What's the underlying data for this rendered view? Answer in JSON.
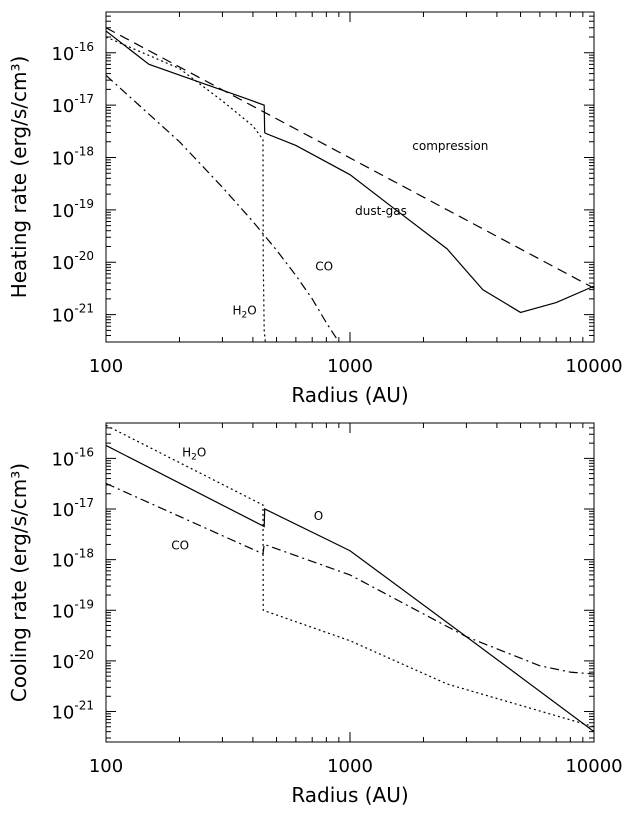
{
  "chart_data": [
    {
      "type": "line",
      "xlabel": "Radius (AU)",
      "ylabel": "Heating rate (erg/s/cm³)",
      "xscale": "log",
      "yscale": "log",
      "xlim": [
        100,
        10000
      ],
      "ylim": [
        3e-22,
        6e-16
      ],
      "x_ticks": [
        {
          "value": 100,
          "label": "100"
        },
        {
          "value": 1000,
          "label": "1000"
        },
        {
          "value": 10000,
          "label": "10000"
        }
      ],
      "y_ticks": [
        {
          "value": 1e-16,
          "label": "10",
          "exp": "-16"
        },
        {
          "value": 1e-17,
          "label": "10",
          "exp": "-17"
        },
        {
          "value": 1e-18,
          "label": "10",
          "exp": "-18"
        },
        {
          "value": 1e-19,
          "label": "10",
          "exp": "-19"
        },
        {
          "value": 1e-20,
          "label": "10",
          "exp": "-20"
        },
        {
          "value": 1e-21,
          "label": "10",
          "exp": "-21"
        }
      ],
      "grid": false,
      "series": [
        {
          "name": "compression",
          "style": "dashed",
          "points": [
            [
              100,
              3e-16
            ],
            [
              10000,
              3.2e-21
            ]
          ]
        },
        {
          "name": "dust-gas",
          "style": "solid",
          "points": [
            [
              100,
              2.6e-16
            ],
            [
              150,
              6e-17
            ],
            [
              250,
              2.6e-17
            ],
            [
              350,
              1.5e-17
            ],
            [
              445,
              1e-17
            ],
            [
              447,
              3e-18
            ],
            [
              450,
              2.9e-18
            ],
            [
              600,
              1.7e-18
            ],
            [
              1000,
              4.7e-19
            ],
            [
              1500,
              1.1e-19
            ],
            [
              2500,
              1.8e-20
            ],
            [
              3500,
              3e-21
            ],
            [
              5000,
              1.1e-21
            ],
            [
              7000,
              1.7e-21
            ],
            [
              10000,
              3.5e-21
            ]
          ]
        },
        {
          "name": "H₂O",
          "style": "dotted",
          "points": [
            [
              100,
              2e-16
            ],
            [
              200,
              5e-17
            ],
            [
              300,
              1.2e-17
            ],
            [
              400,
              4e-18
            ],
            [
              440,
              2.2e-18
            ],
            [
              441,
              1e-20
            ],
            [
              445,
              5e-22
            ],
            [
              450,
              3e-22
            ]
          ]
        },
        {
          "name": "CO",
          "style": "dashdot",
          "points": [
            [
              100,
              3.7e-17
            ],
            [
              200,
              2e-18
            ],
            [
              300,
              2.7e-19
            ],
            [
              400,
              6e-20
            ],
            [
              500,
              1.7e-20
            ],
            [
              600,
              5.6e-21
            ],
            [
              700,
              2e-21
            ],
            [
              800,
              7e-22
            ],
            [
              900,
              3e-22
            ]
          ]
        }
      ],
      "annotations": [
        {
          "text": "compression",
          "x": 1800,
          "y": 1.4e-18
        },
        {
          "text": "dust-gas",
          "x": 1050,
          "y": 8e-20
        },
        {
          "text": "CO",
          "x": 720,
          "y": 7e-21
        },
        {
          "text": "H",
          "sub": "2",
          "tail": "O",
          "x": 330,
          "y": 1e-21
        }
      ]
    },
    {
      "type": "line",
      "xlabel": "Radius (AU)",
      "ylabel": "Cooling rate (erg/s/cm³)",
      "xscale": "log",
      "yscale": "log",
      "xlim": [
        100,
        10000
      ],
      "ylim": [
        2.5e-22,
        5e-16
      ],
      "x_ticks": [
        {
          "value": 100,
          "label": "100"
        },
        {
          "value": 1000,
          "label": "1000"
        },
        {
          "value": 10000,
          "label": "10000"
        }
      ],
      "y_ticks": [
        {
          "value": 1e-16,
          "label": "10",
          "exp": "-16"
        },
        {
          "value": 1e-17,
          "label": "10",
          "exp": "-17"
        },
        {
          "value": 1e-18,
          "label": "10",
          "exp": "-18"
        },
        {
          "value": 1e-19,
          "label": "10",
          "exp": "-19"
        },
        {
          "value": 1e-20,
          "label": "10",
          "exp": "-20"
        },
        {
          "value": 1e-21,
          "label": "10",
          "exp": "-21"
        }
      ],
      "grid": false,
      "series": [
        {
          "name": "O",
          "style": "solid",
          "points": [
            [
              100,
              1.8e-16
            ],
            [
              445,
              4.5e-18
            ],
            [
              447,
              1e-17
            ],
            [
              1000,
              1.5e-18
            ],
            [
              3000,
              3e-20
            ],
            [
              10000,
              4e-22
            ]
          ]
        },
        {
          "name": "H₂O",
          "style": "dotted",
          "points": [
            [
              100,
              4.5e-16
            ],
            [
              440,
              1.2e-17
            ],
            [
              441,
              1e-19
            ],
            [
              1000,
              2.5e-20
            ],
            [
              2500,
              3.5e-21
            ],
            [
              10000,
              5e-22
            ]
          ]
        },
        {
          "name": "CO",
          "style": "dashdot",
          "points": [
            [
              100,
              3.2e-17
            ],
            [
              440,
              1.3e-18
            ],
            [
              445,
              2e-18
            ],
            [
              1000,
              5e-19
            ],
            [
              3000,
              3e-20
            ],
            [
              6000,
              8e-21
            ],
            [
              8000,
              6e-21
            ],
            [
              10000,
              5.5e-21
            ]
          ]
        }
      ],
      "annotations": [
        {
          "text": "H",
          "sub": "2",
          "tail": "O",
          "x": 205,
          "y": 1.1e-16
        },
        {
          "text": "O",
          "x": 710,
          "y": 6e-18
        },
        {
          "text": "CO",
          "x": 185,
          "y": 1.6e-18
        }
      ]
    }
  ]
}
